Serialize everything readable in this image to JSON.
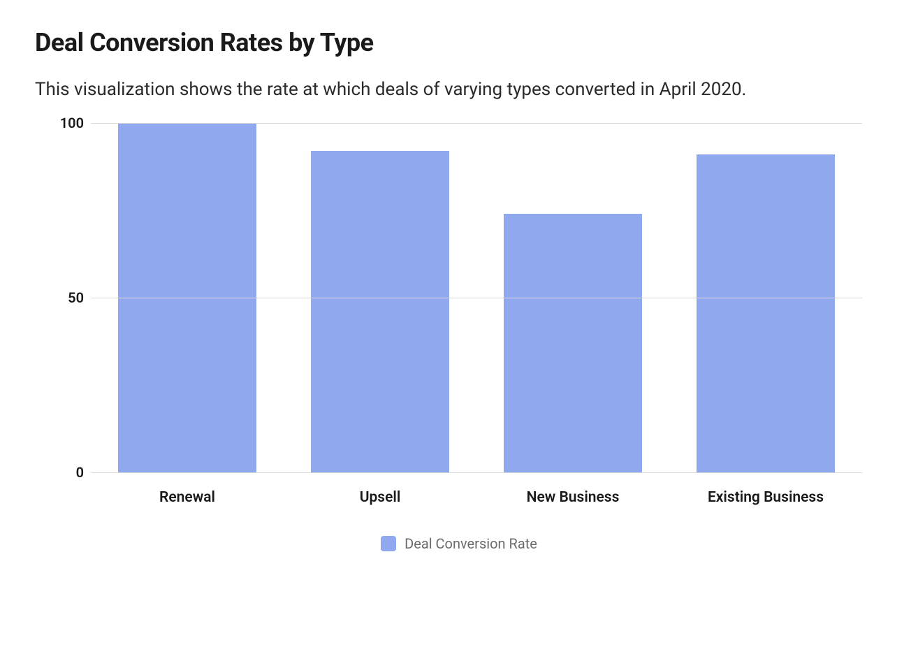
{
  "title": "Deal Conversion Rates by Type",
  "subtitle": "This visualization shows the rate at which deals of varying types converted in April 2020.",
  "chart": {
    "type": "bar",
    "categories": [
      "Renewal",
      "Upsell",
      "New Business",
      "Existing Business"
    ],
    "values": [
      100,
      92,
      74,
      91
    ],
    "bar_color": "#8fa8ee",
    "background_color": "#ffffff",
    "grid_color": "#d9d9d9",
    "ylim": [
      0,
      100
    ],
    "yticks": [
      0,
      50,
      100
    ],
    "bar_width_pct": 72,
    "title_fontsize": 36,
    "title_color": "#1a1a1a",
    "subtitle_fontsize": 26,
    "subtitle_color": "#2a2a2a",
    "ytick_fontsize": 20,
    "ytick_fontweight": 600,
    "xlabel_fontsize": 21,
    "xlabel_fontweight": 600,
    "label_color": "#1a1a1a"
  },
  "legend": {
    "label": "Deal Conversion Rate",
    "swatch_color": "#8fa8ee",
    "label_color": "#6b6b6b",
    "label_fontsize": 20
  }
}
